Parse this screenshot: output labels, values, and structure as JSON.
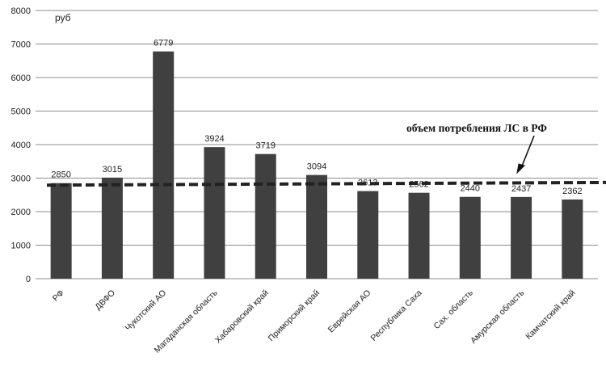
{
  "chart_data": {
    "type": "bar",
    "unit_label": "руб",
    "categories": [
      "РФ",
      "ДВФО",
      "Чукотский АО",
      "Магаданская область",
      "Хабаровский край",
      "Приморский край",
      "Еврейская АО",
      "Республика Саха",
      "Сах. область",
      "Амурская область",
      "Камчатский край"
    ],
    "values": [
      2850,
      3015,
      6779,
      3924,
      3719,
      3094,
      2613,
      2562,
      2440,
      2437,
      2362
    ],
    "value_labels": [
      "2850",
      "3015",
      "6779",
      "3924",
      "3719",
      "3094",
      "2613",
      "2562",
      "2440",
      "2437",
      "2362"
    ],
    "ylim": [
      0,
      8000
    ],
    "yticks": [
      "0",
      "1000",
      "2000",
      "3000",
      "4000",
      "5000",
      "6000",
      "7000",
      "8000"
    ],
    "reference_line": {
      "label": "объем потребления ЛС  в РФ",
      "start_value": 2790,
      "end_value": 2870,
      "style": "dashed"
    },
    "grid": true,
    "bar_color": "#404040",
    "grid_color": "#8c8c8c",
    "reference_color": "#222222"
  }
}
